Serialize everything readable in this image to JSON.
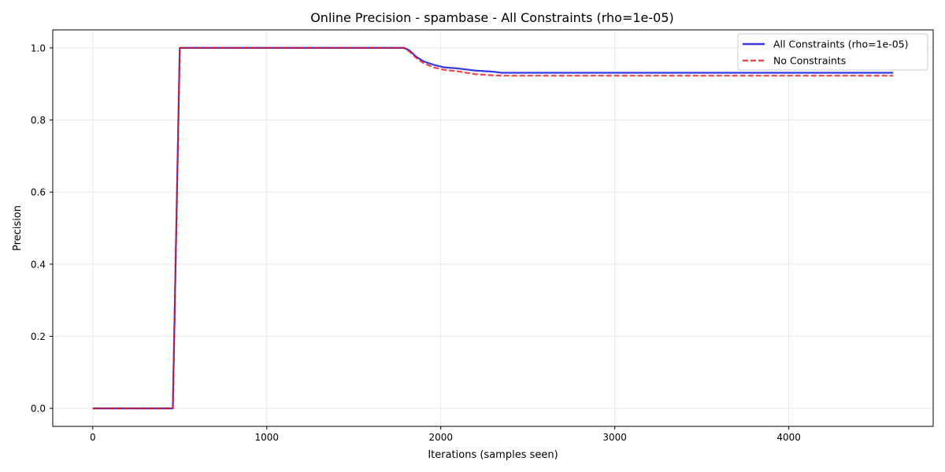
{
  "chart_data": {
    "type": "line",
    "title": "Online Precision - spambase - All Constraints (rho=1e-05)",
    "xlabel": "Iterations (samples seen)",
    "ylabel": "Precision",
    "xlim": [
      -230,
      4830
    ],
    "ylim": [
      -0.05,
      1.05
    ],
    "xticks": [
      0,
      1000,
      2000,
      3000,
      4000
    ],
    "yticks": [
      0.0,
      0.2,
      0.4,
      0.6,
      0.8,
      1.0
    ],
    "xtick_labels": [
      "0",
      "1000",
      "2000",
      "3000",
      "4000"
    ],
    "ytick_labels": [
      "0.0",
      "0.2",
      "0.4",
      "0.6",
      "0.8",
      "1.0"
    ],
    "grid": true,
    "legend_position": "top-right",
    "series": [
      {
        "name": "All Constraints (rho=1e-05)",
        "color": "#0000dd",
        "style": "solid",
        "x": [
          0,
          460,
          500,
          1790,
          1820,
          1860,
          1900,
          1960,
          2020,
          2100,
          2200,
          2300,
          2350,
          2500,
          3000,
          4000,
          4600
        ],
        "y": [
          0.0,
          0.0,
          1.0,
          1.0,
          0.993,
          0.975,
          0.963,
          0.953,
          0.946,
          0.943,
          0.937,
          0.934,
          0.931,
          0.931,
          0.931,
          0.931,
          0.931
        ]
      },
      {
        "name": "No Constraints",
        "color": "#ee1111",
        "style": "dashed",
        "x": [
          0,
          460,
          500,
          1790,
          1820,
          1860,
          1900,
          1960,
          2020,
          2100,
          2200,
          2300,
          2350,
          2500,
          3000,
          4000,
          4600
        ],
        "y": [
          0.0,
          0.0,
          1.0,
          1.0,
          0.99,
          0.972,
          0.958,
          0.946,
          0.939,
          0.935,
          0.927,
          0.924,
          0.923,
          0.923,
          0.923,
          0.923,
          0.923
        ]
      }
    ]
  }
}
